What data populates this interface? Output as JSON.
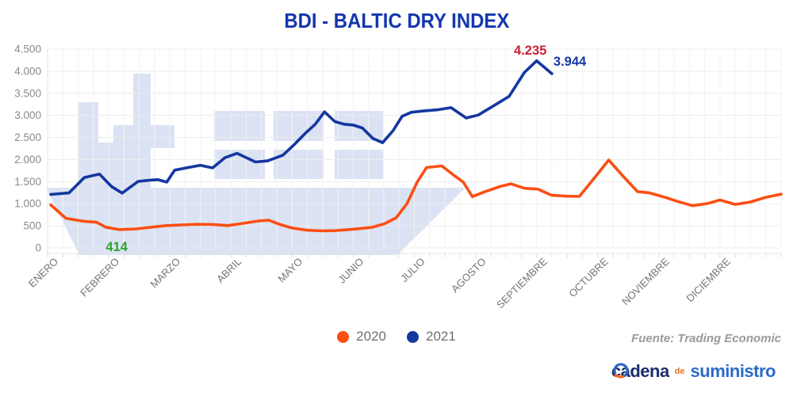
{
  "title": "BDI - BALTIC DRY INDEX",
  "source_note": "Fuente: Trading Economic",
  "logo": {
    "word1": "cadena",
    "word2": "de",
    "word3": "suministro"
  },
  "legend": [
    {
      "label": "2020",
      "color": "#FA4F14"
    },
    {
      "label": "2021",
      "color": "#1437A0"
    }
  ],
  "colors": {
    "title": "#1436AE",
    "series_2020": "#FA4F14",
    "series_2021": "#1437A0",
    "annotation_low_2020": "#2BA32F",
    "annotation_peak_2021": "#C82337",
    "annotation_last_2021": "#1539A8",
    "watermark_ship": "#DBE2F3",
    "axis_text": "#8A8A8A",
    "legend_text": "#6F6F6F",
    "source_text": "#9A9A9A",
    "logo_navy": "#1B2C6B",
    "logo_blue": "#2B6BC9",
    "logo_orange": "#EE7622"
  },
  "chart_data": {
    "type": "line",
    "title": "BDI - BALTIC DRY INDEX",
    "xlabel": "",
    "ylabel": "",
    "grid": true,
    "legend_position": "bottom-center",
    "x_axis": {
      "categories": [
        "ENERO",
        "FEBRERO",
        "MARZO",
        "ABRIL",
        "MAYO",
        "JUNIO",
        "JULIO",
        "AGOSTO",
        "SEPTIEMBRE",
        "OCTUBRE",
        "NOVIEMBRE",
        "DICIEMBRE"
      ]
    },
    "y_axis": {
      "min": 0,
      "max": 4500,
      "step": 500,
      "ticks": [
        "0",
        "500",
        "1.000",
        "1.500",
        "2.000",
        "2.500",
        "3.000",
        "3.500",
        "4.000",
        "4.500"
      ]
    },
    "series": [
      {
        "name": "2020",
        "color": "#FA4F14",
        "points": [
          [
            0.05,
            975
          ],
          [
            0.3,
            670
          ],
          [
            0.6,
            600
          ],
          [
            0.8,
            580
          ],
          [
            0.95,
            470
          ],
          [
            1.17,
            414
          ],
          [
            1.45,
            430
          ],
          [
            1.7,
            470
          ],
          [
            1.95,
            505
          ],
          [
            2.2,
            520
          ],
          [
            2.45,
            535
          ],
          [
            2.7,
            530
          ],
          [
            2.95,
            505
          ],
          [
            3.2,
            555
          ],
          [
            3.45,
            610
          ],
          [
            3.62,
            628
          ],
          [
            3.8,
            530
          ],
          [
            4.0,
            450
          ],
          [
            4.25,
            400
          ],
          [
            4.5,
            385
          ],
          [
            4.7,
            390
          ],
          [
            4.9,
            410
          ],
          [
            5.1,
            435
          ],
          [
            5.3,
            465
          ],
          [
            5.5,
            540
          ],
          [
            5.7,
            680
          ],
          [
            5.88,
            1000
          ],
          [
            6.05,
            1500
          ],
          [
            6.2,
            1820
          ],
          [
            6.45,
            1855
          ],
          [
            6.65,
            1640
          ],
          [
            6.8,
            1490
          ],
          [
            6.95,
            1160
          ],
          [
            7.15,
            1270
          ],
          [
            7.4,
            1390
          ],
          [
            7.58,
            1450
          ],
          [
            7.8,
            1350
          ],
          [
            8.02,
            1330
          ],
          [
            8.25,
            1190
          ],
          [
            8.5,
            1170
          ],
          [
            8.7,
            1165
          ],
          [
            8.95,
            1590
          ],
          [
            9.18,
            1990
          ],
          [
            9.42,
            1615
          ],
          [
            9.65,
            1275
          ],
          [
            9.85,
            1245
          ],
          [
            10.1,
            1145
          ],
          [
            10.3,
            1055
          ],
          [
            10.55,
            955
          ],
          [
            10.8,
            1005
          ],
          [
            11.0,
            1085
          ],
          [
            11.25,
            985
          ],
          [
            11.5,
            1040
          ],
          [
            11.75,
            1145
          ],
          [
            12.0,
            1215
          ]
        ]
      },
      {
        "name": "2021",
        "color": "#1437A0",
        "points": [
          [
            0.05,
            1210
          ],
          [
            0.35,
            1245
          ],
          [
            0.6,
            1590
          ],
          [
            0.75,
            1640
          ],
          [
            0.85,
            1670
          ],
          [
            1.05,
            1385
          ],
          [
            1.22,
            1240
          ],
          [
            1.48,
            1505
          ],
          [
            1.65,
            1530
          ],
          [
            1.8,
            1545
          ],
          [
            1.95,
            1490
          ],
          [
            2.08,
            1760
          ],
          [
            2.3,
            1820
          ],
          [
            2.5,
            1870
          ],
          [
            2.7,
            1810
          ],
          [
            2.9,
            2040
          ],
          [
            3.1,
            2140
          ],
          [
            3.4,
            1945
          ],
          [
            3.6,
            1970
          ],
          [
            3.85,
            2100
          ],
          [
            4.05,
            2360
          ],
          [
            4.22,
            2600
          ],
          [
            4.38,
            2800
          ],
          [
            4.53,
            3080
          ],
          [
            4.7,
            2860
          ],
          [
            4.85,
            2800
          ],
          [
            5.0,
            2780
          ],
          [
            5.15,
            2715
          ],
          [
            5.32,
            2480
          ],
          [
            5.48,
            2380
          ],
          [
            5.65,
            2650
          ],
          [
            5.8,
            2980
          ],
          [
            5.95,
            3070
          ],
          [
            6.15,
            3100
          ],
          [
            6.4,
            3130
          ],
          [
            6.6,
            3175
          ],
          [
            6.85,
            2940
          ],
          [
            7.05,
            3010
          ],
          [
            7.3,
            3220
          ],
          [
            7.55,
            3430
          ],
          [
            7.8,
            3970
          ],
          [
            8.0,
            4235
          ],
          [
            8.25,
            3944
          ]
        ]
      }
    ],
    "annotations": [
      {
        "id": "low-2020",
        "series": "2020",
        "text": "414",
        "month": 1.17,
        "value": 414,
        "color": "#2BA32F"
      },
      {
        "id": "peak-2021",
        "series": "2021",
        "text": "4.235",
        "month": 8.0,
        "value": 4235,
        "color": "#C82337"
      },
      {
        "id": "last-2021",
        "series": "2021",
        "text": "3.944",
        "month": 8.25,
        "value": 3944,
        "color": "#1539A8"
      }
    ]
  }
}
